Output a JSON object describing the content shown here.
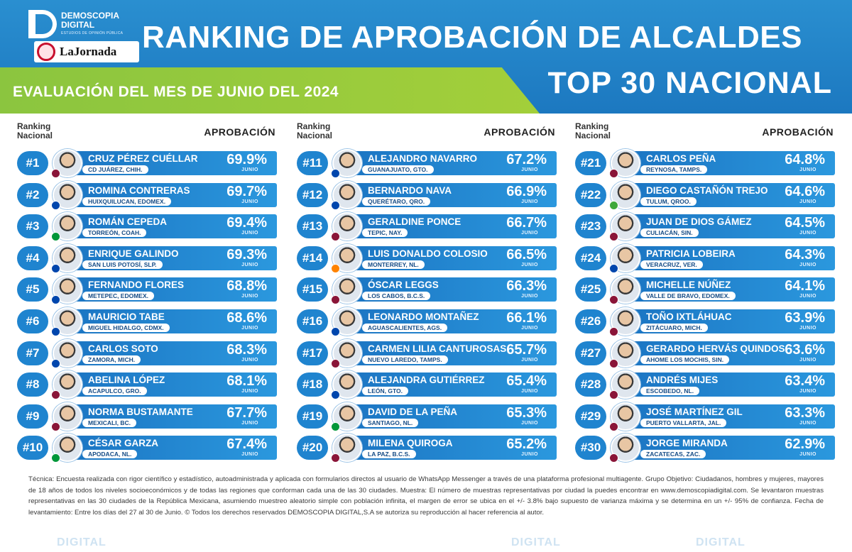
{
  "header": {
    "brand_line1": "DEMOSCOPIA",
    "brand_line2": "DIGITAL",
    "brand_tagline": "ESTUDIOS DE OPINIÓN PÚBLICA",
    "partner": "LaJornada",
    "title": "RANKING DE APROBACIÓN DE ALCALDES",
    "subtitle": "TOP 30 NACIONAL",
    "evaluation": "EVALUACIÓN DEL MES DE JUNIO DEL 2024"
  },
  "columns_header": {
    "ranking_line1": "Ranking",
    "ranking_line2": "Nacional",
    "approval": "APROBACIÓN"
  },
  "month_label": "JUNIO",
  "colors": {
    "header_blue": "#1c78c0",
    "header_green": "#8bc53f",
    "bar_blue": "#1f84cf",
    "morena": "#8a1538",
    "pan": "#0046ad",
    "pvem": "#3ea83a",
    "mc": "#ff8300",
    "pri": "#009739"
  },
  "columns": [
    [
      {
        "rank": "#1",
        "name": "CRUZ PÉREZ CUÉLLAR",
        "city": "CD JUÁREZ, CHIH.",
        "pct": "69.9%",
        "party": "morena-icon"
      },
      {
        "rank": "#2",
        "name": "ROMINA CONTRERAS",
        "city": "HUIXQUILUCAN, EDOMEX.",
        "pct": "69.7%",
        "party": "pan-icon"
      },
      {
        "rank": "#3",
        "name": "ROMÁN CEPEDA",
        "city": "TORREÓN, COAH.",
        "pct": "69.4%",
        "party": "pri-icon"
      },
      {
        "rank": "#4",
        "name": "ENRIQUE GALINDO",
        "city": "SAN LUIS POTOSÍ, SLP.",
        "pct": "69.3%",
        "party": "pan-icon"
      },
      {
        "rank": "#5",
        "name": "FERNANDO FLORES",
        "city": "METEPEC, EDOMEX.",
        "pct": "68.8%",
        "party": "pan-icon"
      },
      {
        "rank": "#6",
        "name": "MAURICIO TABE",
        "city": "MIGUEL HIDALGO, CDMX.",
        "pct": "68.6%",
        "party": "pan-icon"
      },
      {
        "rank": "#7",
        "name": "CARLOS SOTO",
        "city": "ZAMORA, MICH.",
        "pct": "68.3%",
        "party": "pan-icon"
      },
      {
        "rank": "#8",
        "name": "ABELINA LÓPEZ",
        "city": "ACAPULCO, GRO.",
        "pct": "68.1%",
        "party": "morena-icon"
      },
      {
        "rank": "#9",
        "name": "NORMA BUSTAMANTE",
        "city": "MEXICALI, BC.",
        "pct": "67.7%",
        "party": "morena-icon"
      },
      {
        "rank": "#10",
        "name": "CÉSAR GARZA",
        "city": "APODACA, NL.",
        "pct": "67.4%",
        "party": "pri-icon"
      }
    ],
    [
      {
        "rank": "#11",
        "name": "ALEJANDRO NAVARRO",
        "city": "GUANAJUATO, GTO.",
        "pct": "67.2%",
        "party": "pan-icon"
      },
      {
        "rank": "#12",
        "name": "BERNARDO NAVA",
        "city": "QUERÉTARO, QRO.",
        "pct": "66.9%",
        "party": "pan-icon"
      },
      {
        "rank": "#13",
        "name": "GERALDINE PONCE",
        "city": "TEPIC, NAY.",
        "pct": "66.7%",
        "party": "morena-icon"
      },
      {
        "rank": "#14",
        "name": "LUIS DONALDO COLOSIO",
        "city": "MONTERREY, NL.",
        "pct": "66.5%",
        "party": "mc-icon"
      },
      {
        "rank": "#15",
        "name": "ÓSCAR LEGGS",
        "city": "LOS CABOS, B.C.S.",
        "pct": "66.3%",
        "party": "morena-icon"
      },
      {
        "rank": "#16",
        "name": "LEONARDO MONTAÑEZ",
        "city": "AGUASCALIENTES, AGS.",
        "pct": "66.1%",
        "party": "pan-icon"
      },
      {
        "rank": "#17",
        "name": "CARMEN LILIA CANTUROSAS",
        "city": "NUEVO LAREDO, TAMPS.",
        "pct": "65.7%",
        "party": "morena-icon"
      },
      {
        "rank": "#18",
        "name": "ALEJANDRA GUTIÉRREZ",
        "city": "LEÓN, GTO.",
        "pct": "65.4%",
        "party": "pan-icon"
      },
      {
        "rank": "#19",
        "name": "DAVID DE LA PEÑA",
        "city": "SANTIAGO, NL.",
        "pct": "65.3%",
        "party": "pri-icon"
      },
      {
        "rank": "#20",
        "name": "MILENA QUIROGA",
        "city": "LA PAZ, B.C.S.",
        "pct": "65.2%",
        "party": "morena-icon"
      }
    ],
    [
      {
        "rank": "#21",
        "name": "CARLOS PEÑA",
        "city": "REYNOSA, TAMPS.",
        "pct": "64.8%",
        "party": "morena-icon"
      },
      {
        "rank": "#22",
        "name": "DIEGO CASTAÑÓN TREJO",
        "city": "TULUM, QROO.",
        "pct": "64.6%",
        "party": "pvem-icon"
      },
      {
        "rank": "#23",
        "name": "JUAN DE DIOS GÁMEZ",
        "city": "CULIACÁN, SIN.",
        "pct": "64.5%",
        "party": "morena-icon"
      },
      {
        "rank": "#24",
        "name": "PATRICIA LOBEIRA",
        "city": "VERACRUZ, VER.",
        "pct": "64.3%",
        "party": "pan-icon"
      },
      {
        "rank": "#25",
        "name": "MICHELLE NÚÑEZ",
        "city": "VALLE DE BRAVO, EDOMEX.",
        "pct": "64.1%",
        "party": "morena-icon"
      },
      {
        "rank": "#26",
        "name": "TOÑO IXTLÁHUAC",
        "city": "ZITÁCUARO, MICH.",
        "pct": "63.9%",
        "party": "morena-icon"
      },
      {
        "rank": "#27",
        "name": "GERARDO HERVÁS QUINDOS",
        "city": "AHOME LOS MOCHIS, SIN.",
        "pct": "63.6%",
        "party": "morena-icon"
      },
      {
        "rank": "#28",
        "name": "ANDRÉS MIJES",
        "city": "ESCOBEDO, NL.",
        "pct": "63.4%",
        "party": "morena-icon"
      },
      {
        "rank": "#29",
        "name": "JOSÉ MARTÍNEZ GIL",
        "city": "PUERTO VALLARTA, JAL.",
        "pct": "63.3%",
        "party": "morena-icon"
      },
      {
        "rank": "#30",
        "name": "JORGE MIRANDA",
        "city": "ZACATECAS, ZAC.",
        "pct": "62.9%",
        "party": "morena-icon"
      }
    ]
  ],
  "footer_text": "Técnica: Encuesta realizada con rigor científico y estadístico, autoadministrada y aplicada con formularios directos al usuario de WhatsApp Messenger a través de una plataforma profesional multiagente. Grupo Objetivo: Ciudadanos, hombres y mujeres, mayores de 18 años de todos los niveles socioeconómicos y de todas las regiones que conforman cada una de las 30 ciudades. Muestra: El número de muestras representativas por ciudad la puedes encontrar en www.demoscopiadigital.com. Se levantaron muestras representativas en las 30 ciudades de la República Mexicana, asumiendo muestreo aleatorio simple con población infinita, el margen de error se ubica en el +/- 3.8% bajo supuesto de varianza máxima y se determina en un +/- 95% de confianza. Fecha de levantamiento: Entre los días del 27 al 30 de Junio. © Todos los derechos reservados DEMOSCOPIA DIGITAL,S.A se autoriza su reproducción al hacer referencia al autor.",
  "watermark": "DIGITAL"
}
